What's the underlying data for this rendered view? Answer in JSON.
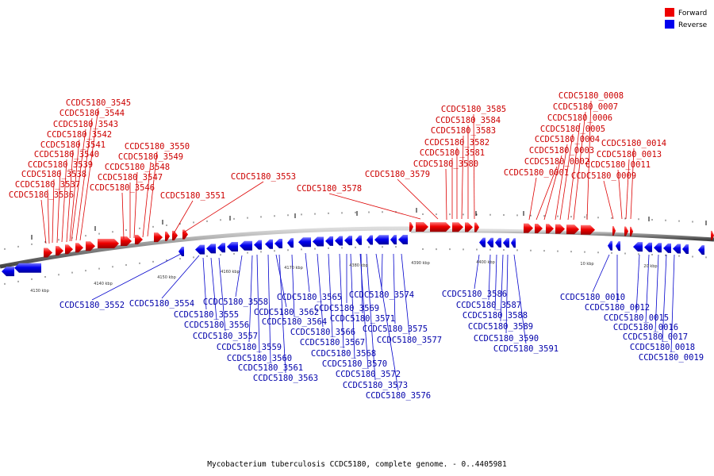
{
  "legend": {
    "forward_label": "Forward",
    "reverse_label": "Reverse",
    "forward_color": "#ee0000",
    "reverse_color": "#0000ee"
  },
  "caption": "Mycobacterium tuberculosis CCDC5180, complete genome. - 0..4405981",
  "scale_labels": [
    "4130 kbp",
    "4140 kbp",
    "4150 kbp",
    "4160 kbp",
    "4170 kbp",
    "4380 kbp",
    "4390 kbp",
    "4400 kbp",
    "10 kbp",
    "20 kbp"
  ],
  "forward_genes": [
    "CCDC5180_3545",
    "CCDC5180_3544",
    "CCDC5180_3543",
    "CCDC5180_3542",
    "CCDC5180_3541",
    "CCDC5180_3540",
    "CCDC5180_3539",
    "CCDC5180_3538",
    "CCDC5180_3537",
    "CCDC5180_3536",
    "CCDC5180_3550",
    "CCDC5180_3549",
    "CCDC5180_3548",
    "CCDC5180_3547",
    "CCDC5180_3546",
    "CCDC5180_3551",
    "CCDC5180_3553",
    "CCDC5180_3578",
    "CCDC5180_3585",
    "CCDC5180_3584",
    "CCDC5180_3583",
    "CCDC5180_3582",
    "CCDC5180_3581",
    "CCDC5180_3580",
    "CCDC5180_3579",
    "CCDC5180_0008",
    "CCDC5180_0007",
    "CCDC5180_0006",
    "CCDC5180_0005",
    "CCDC5180_0004",
    "CCDC5180_0003",
    "CCDC5180_0002",
    "CCDC5180_0001",
    "CCDC5180_0014",
    "CCDC5180_0013",
    "CCDC5180_0011",
    "CCDC5180_0009"
  ],
  "reverse_genes": [
    "CCDC5180_3552",
    "CCDC5180_3554",
    "CCDC5180_3555",
    "CCDC5180_3556",
    "CCDC5180_3557",
    "CCDC5180_3558",
    "CCDC5180_3559",
    "CCDC5180_3560",
    "CCDC5180_3561",
    "CCDC5180_3562",
    "CCDC5180_3563",
    "CCDC5180_3564",
    "CCDC5180_3565",
    "CCDC5180_3566",
    "CCDC5180_3567",
    "CCDC5180_3568",
    "CCDC5180_3569",
    "CCDC5180_3570",
    "CCDC5180_3571",
    "CCDC5180_3572",
    "CCDC5180_3573",
    "CCDC5180_3574",
    "CCDC5180_3575",
    "CCDC5180_3576",
    "CCDC5180_3577",
    "CCDC5180_3586",
    "CCDC5180_3587",
    "CCDC5180_3588",
    "CCDC5180_3589",
    "CCDC5180_3590",
    "CCDC5180_3591",
    "CCDC5180_0010",
    "CCDC5180_0012",
    "CCDC5180_0015",
    "CCDC5180_0016",
    "CCDC5180_0017",
    "CCDC5180_0018",
    "CCDC5180_0019"
  ]
}
